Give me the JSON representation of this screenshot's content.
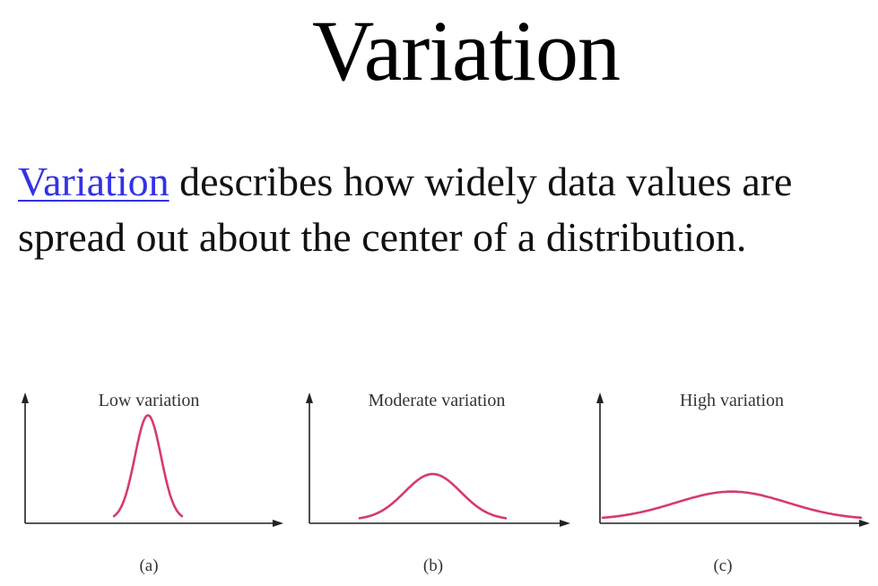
{
  "slide": {
    "title": "Variation",
    "definition_term": "Variation",
    "definition_rest": " describes how widely data values are spread out about the center of a distribution."
  },
  "colors": {
    "link": "#3232e6",
    "curve": "#d63a6e",
    "axis": "#222222"
  },
  "chart_data": [
    {
      "type": "line",
      "title": "Low variation",
      "caption": "(a)",
      "distribution": "normal",
      "mean": 0,
      "sd": 0.35,
      "xlim": [
        -3,
        3
      ],
      "ylim": [
        0,
        1.15
      ],
      "xlabel": "",
      "ylabel": ""
    },
    {
      "type": "line",
      "title": "Moderate variation",
      "caption": "(b)",
      "distribution": "normal",
      "mean": 0,
      "sd": 0.8,
      "xlim": [
        -3,
        3
      ],
      "ylim": [
        0,
        1.15
      ],
      "xlabel": "",
      "ylabel": ""
    },
    {
      "type": "line",
      "title": "High variation",
      "caption": "(c)",
      "distribution": "normal",
      "mean": 0,
      "sd": 1.3,
      "xlim": [
        -3,
        3
      ],
      "ylim": [
        0,
        1.15
      ],
      "xlabel": "",
      "ylabel": ""
    }
  ]
}
